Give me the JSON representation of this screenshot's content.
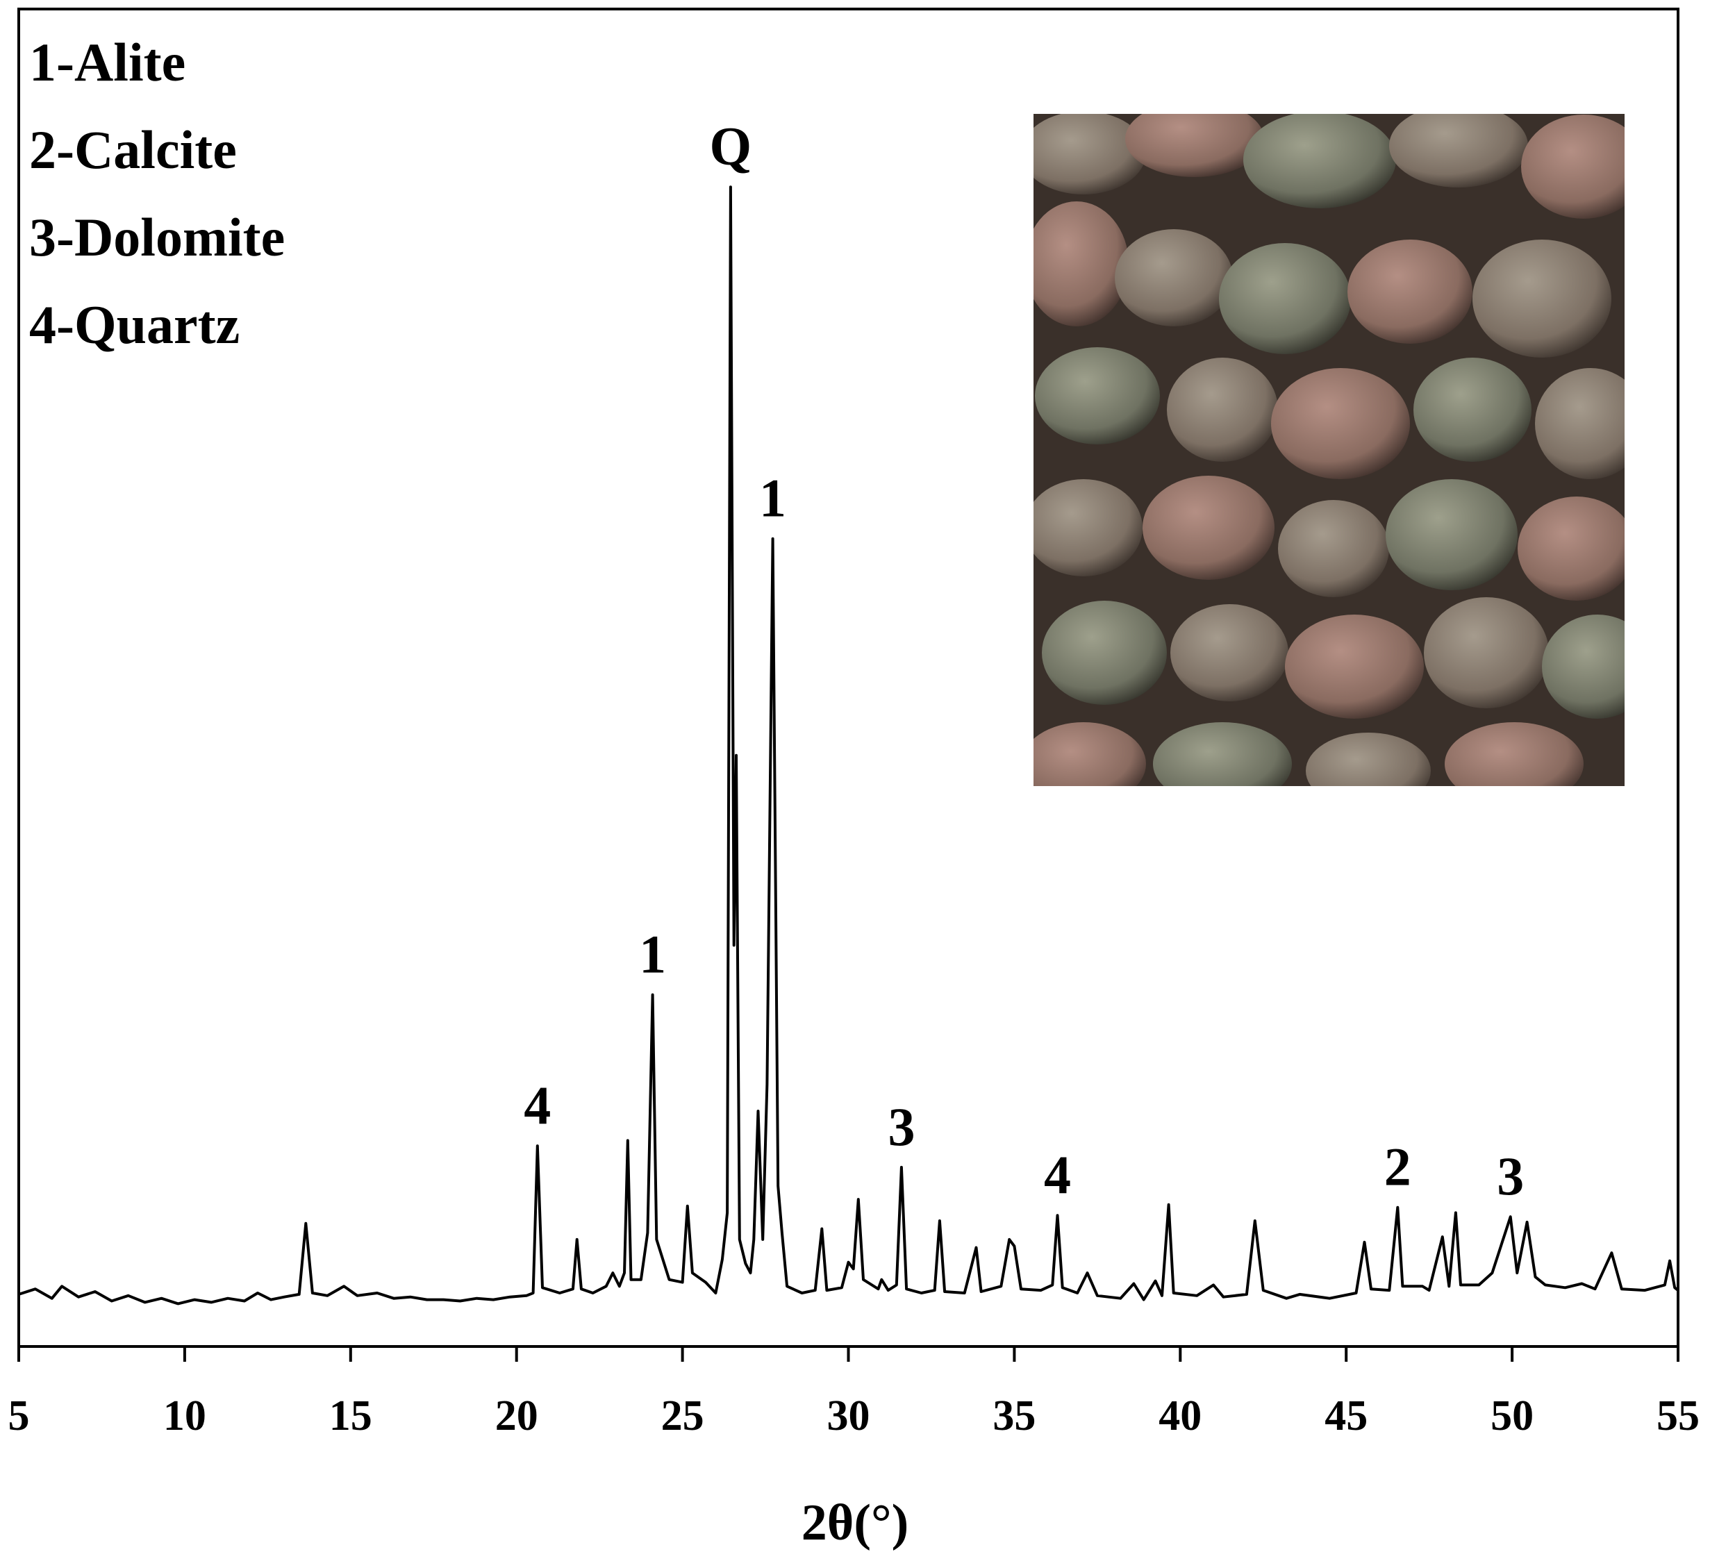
{
  "chart_data": {
    "type": "line",
    "x_label": "2θ(°)",
    "legend_text": [
      "1-Alite",
      "2-Calcite",
      "3-Dolomite",
      "4-Quartz"
    ],
    "color": "#000000",
    "xlim": [
      5,
      55
    ],
    "xticks": [
      5,
      10,
      15,
      20,
      25,
      30,
      35,
      40,
      45,
      50,
      55
    ],
    "ylim": [
      0,
      100
    ],
    "x": [
      5.0,
      5.5,
      6.0,
      6.3,
      6.8,
      7.3,
      7.8,
      8.3,
      8.8,
      9.3,
      9.8,
      10.3,
      10.8,
      11.3,
      11.8,
      12.2,
      12.6,
      13.0,
      13.45,
      13.65,
      13.85,
      14.3,
      14.8,
      15.2,
      15.8,
      16.3,
      16.8,
      17.3,
      17.8,
      18.3,
      18.8,
      19.3,
      19.8,
      20.3,
      20.5,
      20.63,
      20.78,
      21.3,
      21.7,
      21.82,
      21.95,
      22.3,
      22.7,
      22.9,
      23.1,
      23.25,
      23.35,
      23.45,
      23.75,
      23.95,
      24.1,
      24.22,
      24.6,
      25.0,
      25.15,
      25.3,
      25.7,
      26.0,
      26.2,
      26.35,
      26.45,
      26.55,
      26.62,
      26.72,
      26.9,
      27.05,
      27.15,
      27.28,
      27.42,
      27.55,
      27.72,
      27.88,
      28.0,
      28.15,
      28.6,
      29.0,
      29.2,
      29.35,
      29.8,
      30.0,
      30.15,
      30.3,
      30.45,
      30.9,
      31.0,
      31.2,
      31.45,
      31.6,
      31.75,
      32.2,
      32.6,
      32.75,
      32.9,
      33.5,
      33.85,
      34.0,
      34.6,
      34.85,
      35.0,
      35.2,
      35.8,
      36.15,
      36.3,
      36.45,
      36.9,
      37.2,
      37.5,
      38.2,
      38.6,
      38.9,
      39.25,
      39.45,
      39.65,
      39.8,
      40.5,
      41.0,
      41.3,
      42.0,
      42.25,
      42.5,
      43.2,
      43.6,
      44.5,
      45.3,
      45.55,
      45.75,
      46.3,
      46.55,
      46.7,
      47.3,
      47.5,
      47.9,
      48.1,
      48.3,
      48.45,
      49.0,
      49.4,
      49.7,
      49.95,
      50.15,
      50.45,
      50.7,
      51.0,
      51.6,
      52.1,
      52.5,
      53.0,
      53.3,
      54.0,
      54.6,
      54.75,
      54.9,
      55.0
    ],
    "values": [
      3.9,
      4.3,
      3.6,
      4.5,
      3.7,
      4.1,
      3.4,
      3.8,
      3.3,
      3.6,
      3.2,
      3.5,
      3.3,
      3.6,
      3.4,
      4.0,
      3.5,
      3.7,
      3.9,
      9.2,
      4.0,
      3.8,
      4.5,
      3.8,
      4.0,
      3.6,
      3.7,
      3.5,
      3.5,
      3.4,
      3.6,
      3.5,
      3.7,
      3.8,
      4.0,
      15.0,
      4.4,
      4.0,
      4.3,
      8.0,
      4.3,
      4.0,
      4.5,
      5.5,
      4.5,
      5.5,
      15.4,
      5.0,
      5.0,
      8.5,
      26.3,
      8.0,
      5.0,
      4.8,
      10.5,
      5.5,
      4.8,
      4.0,
      6.5,
      10.0,
      86.7,
      30.0,
      44.2,
      8.0,
      6.2,
      5.5,
      8.0,
      17.6,
      8.0,
      19.6,
      60.4,
      12.0,
      8.5,
      4.5,
      4.0,
      4.2,
      8.8,
      4.2,
      4.4,
      6.3,
      5.8,
      11.0,
      5.0,
      4.3,
      5.0,
      4.2,
      4.6,
      13.4,
      4.3,
      4.0,
      4.2,
      9.4,
      4.1,
      4.0,
      7.4,
      4.1,
      4.5,
      8.0,
      7.5,
      4.3,
      4.2,
      4.6,
      9.8,
      4.4,
      4.0,
      5.5,
      3.8,
      3.6,
      4.7,
      3.5,
      4.9,
      3.8,
      10.6,
      4.0,
      3.8,
      4.6,
      3.7,
      3.9,
      9.4,
      4.2,
      3.6,
      3.9,
      3.6,
      4.0,
      7.8,
      4.3,
      4.2,
      10.4,
      4.5,
      4.5,
      4.2,
      8.2,
      4.5,
      10.0,
      4.6,
      4.6,
      5.5,
      7.8,
      9.7,
      5.5,
      9.3,
      5.2,
      4.6,
      4.4,
      4.7,
      4.3,
      7.0,
      4.3,
      4.2,
      4.6,
      6.4,
      4.4,
      4.2
    ],
    "annotations": [
      {
        "text": "Q",
        "x": 26.45
      },
      {
        "text": "1",
        "x": 27.72
      },
      {
        "text": "1",
        "x": 24.1
      },
      {
        "text": "4",
        "x": 20.63
      },
      {
        "text": "3",
        "x": 31.6
      },
      {
        "text": "4",
        "x": 36.3
      },
      {
        "text": "2",
        "x": 46.55
      },
      {
        "text": "3",
        "x": 49.95
      }
    ]
  }
}
